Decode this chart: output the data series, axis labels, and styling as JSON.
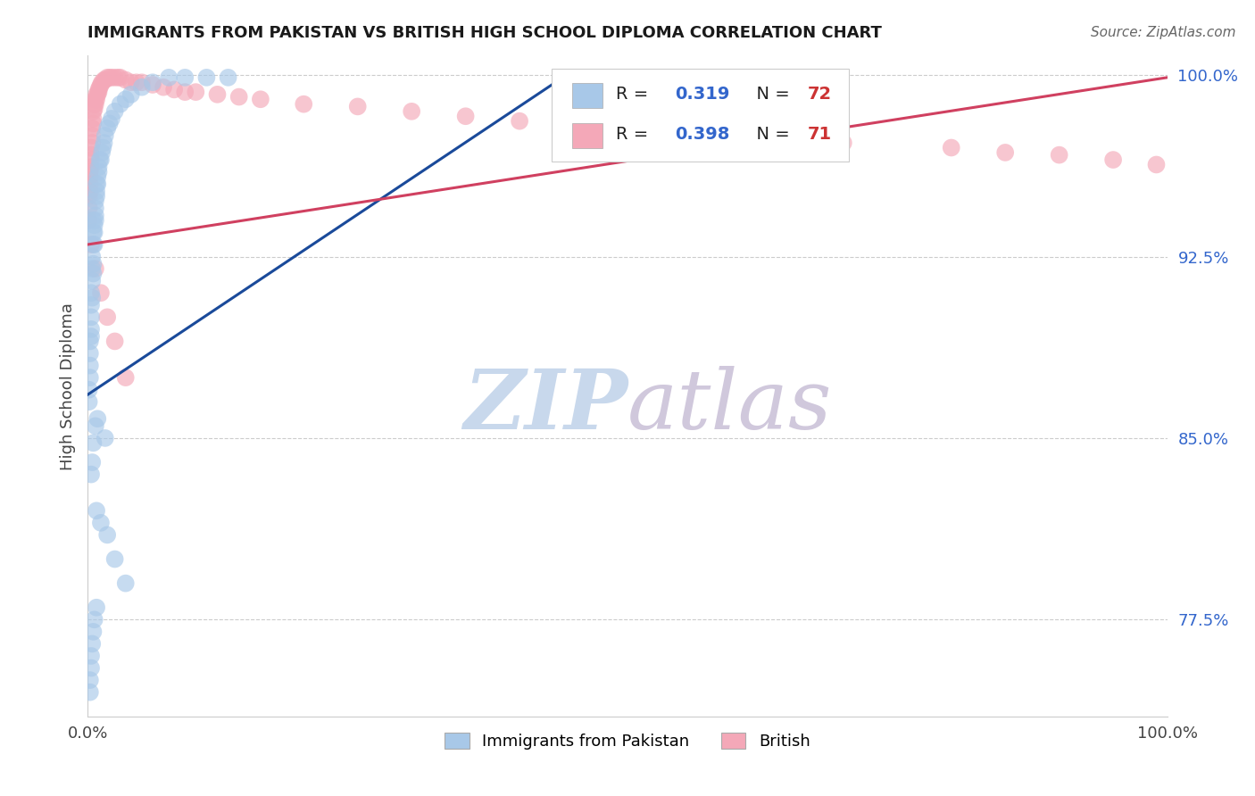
{
  "title": "IMMIGRANTS FROM PAKISTAN VS BRITISH HIGH SCHOOL DIPLOMA CORRELATION CHART",
  "source": "Source: ZipAtlas.com",
  "ylabel": "High School Diploma",
  "xlim": [
    0.0,
    1.0
  ],
  "ylim": [
    0.735,
    1.008
  ],
  "xticklabels": [
    "0.0%",
    "100.0%"
  ],
  "yticklabels_right": [
    "77.5%",
    "85.0%",
    "92.5%",
    "100.0%"
  ],
  "yticks_right": [
    0.775,
    0.85,
    0.925,
    1.0
  ],
  "legend_label1": "Immigrants from Pakistan",
  "legend_label2": "British",
  "r1": "0.319",
  "n1": "72",
  "r2": "0.398",
  "n2": "71",
  "color_blue": "#A8C8E8",
  "color_pink": "#F4A8B8",
  "color_blue_line": "#1A4A9A",
  "color_pink_line": "#D04060",
  "color_title": "#1A1A1A",
  "color_source": "#666666",
  "color_r_val": "#3366CC",
  "color_n_val": "#CC3333",
  "watermark_zip": "ZIP",
  "watermark_atlas": "atlas",
  "watermark_color_zip": "#C8D8EC",
  "watermark_color_atlas": "#D0C8DC",
  "blue_x": [
    0.001,
    0.001,
    0.002,
    0.002,
    0.002,
    0.002,
    0.003,
    0.003,
    0.003,
    0.003,
    0.003,
    0.004,
    0.004,
    0.004,
    0.004,
    0.005,
    0.005,
    0.005,
    0.005,
    0.005,
    0.006,
    0.006,
    0.006,
    0.007,
    0.007,
    0.007,
    0.007,
    0.008,
    0.008,
    0.008,
    0.009,
    0.009,
    0.01,
    0.01,
    0.011,
    0.012,
    0.013,
    0.014,
    0.015,
    0.016,
    0.018,
    0.02,
    0.022,
    0.025,
    0.03,
    0.035,
    0.04,
    0.05,
    0.06,
    0.075,
    0.09,
    0.11,
    0.13,
    0.016,
    0.009,
    0.007,
    0.005,
    0.004,
    0.003,
    0.008,
    0.012,
    0.018,
    0.025,
    0.035,
    0.008,
    0.006,
    0.005,
    0.004,
    0.003,
    0.003,
    0.002,
    0.002
  ],
  "blue_y": [
    0.87,
    0.865,
    0.88,
    0.875,
    0.89,
    0.885,
    0.892,
    0.895,
    0.9,
    0.905,
    0.91,
    0.908,
    0.915,
    0.92,
    0.925,
    0.918,
    0.922,
    0.93,
    0.935,
    0.94,
    0.93,
    0.935,
    0.938,
    0.94,
    0.945,
    0.942,
    0.948,
    0.95,
    0.952,
    0.955,
    0.955,
    0.958,
    0.96,
    0.962,
    0.965,
    0.965,
    0.968,
    0.97,
    0.972,
    0.975,
    0.978,
    0.98,
    0.982,
    0.985,
    0.988,
    0.99,
    0.992,
    0.995,
    0.997,
    0.999,
    0.999,
    0.999,
    0.999,
    0.85,
    0.858,
    0.855,
    0.848,
    0.84,
    0.835,
    0.82,
    0.815,
    0.81,
    0.8,
    0.79,
    0.78,
    0.775,
    0.77,
    0.765,
    0.76,
    0.755,
    0.75,
    0.745
  ],
  "pink_x": [
    0.001,
    0.001,
    0.001,
    0.002,
    0.002,
    0.002,
    0.002,
    0.003,
    0.003,
    0.003,
    0.003,
    0.004,
    0.004,
    0.004,
    0.005,
    0.005,
    0.005,
    0.006,
    0.006,
    0.007,
    0.007,
    0.008,
    0.008,
    0.009,
    0.01,
    0.01,
    0.011,
    0.012,
    0.013,
    0.015,
    0.016,
    0.018,
    0.02,
    0.022,
    0.025,
    0.028,
    0.03,
    0.035,
    0.04,
    0.045,
    0.05,
    0.06,
    0.07,
    0.08,
    0.09,
    0.1,
    0.12,
    0.14,
    0.16,
    0.2,
    0.25,
    0.3,
    0.35,
    0.4,
    0.45,
    0.5,
    0.55,
    0.6,
    0.65,
    0.7,
    0.8,
    0.85,
    0.9,
    0.95,
    0.99,
    0.003,
    0.007,
    0.012,
    0.018,
    0.025,
    0.035
  ],
  "pink_y": [
    0.94,
    0.945,
    0.95,
    0.952,
    0.955,
    0.958,
    0.96,
    0.962,
    0.965,
    0.967,
    0.97,
    0.972,
    0.975,
    0.978,
    0.98,
    0.982,
    0.985,
    0.986,
    0.988,
    0.988,
    0.99,
    0.99,
    0.992,
    0.992,
    0.993,
    0.994,
    0.995,
    0.996,
    0.997,
    0.998,
    0.998,
    0.999,
    0.999,
    0.999,
    0.999,
    0.999,
    0.999,
    0.998,
    0.997,
    0.997,
    0.997,
    0.996,
    0.995,
    0.994,
    0.993,
    0.993,
    0.992,
    0.991,
    0.99,
    0.988,
    0.987,
    0.985,
    0.983,
    0.981,
    0.979,
    0.978,
    0.977,
    0.975,
    0.974,
    0.972,
    0.97,
    0.968,
    0.967,
    0.965,
    0.963,
    0.93,
    0.92,
    0.91,
    0.9,
    0.89,
    0.875
  ],
  "blue_line_x0": 0.0,
  "blue_line_y0": 0.868,
  "blue_line_x1": 0.44,
  "blue_line_y1": 0.999,
  "pink_line_x0": 0.0,
  "pink_line_y0": 0.93,
  "pink_line_x1": 1.0,
  "pink_line_y1": 0.999
}
